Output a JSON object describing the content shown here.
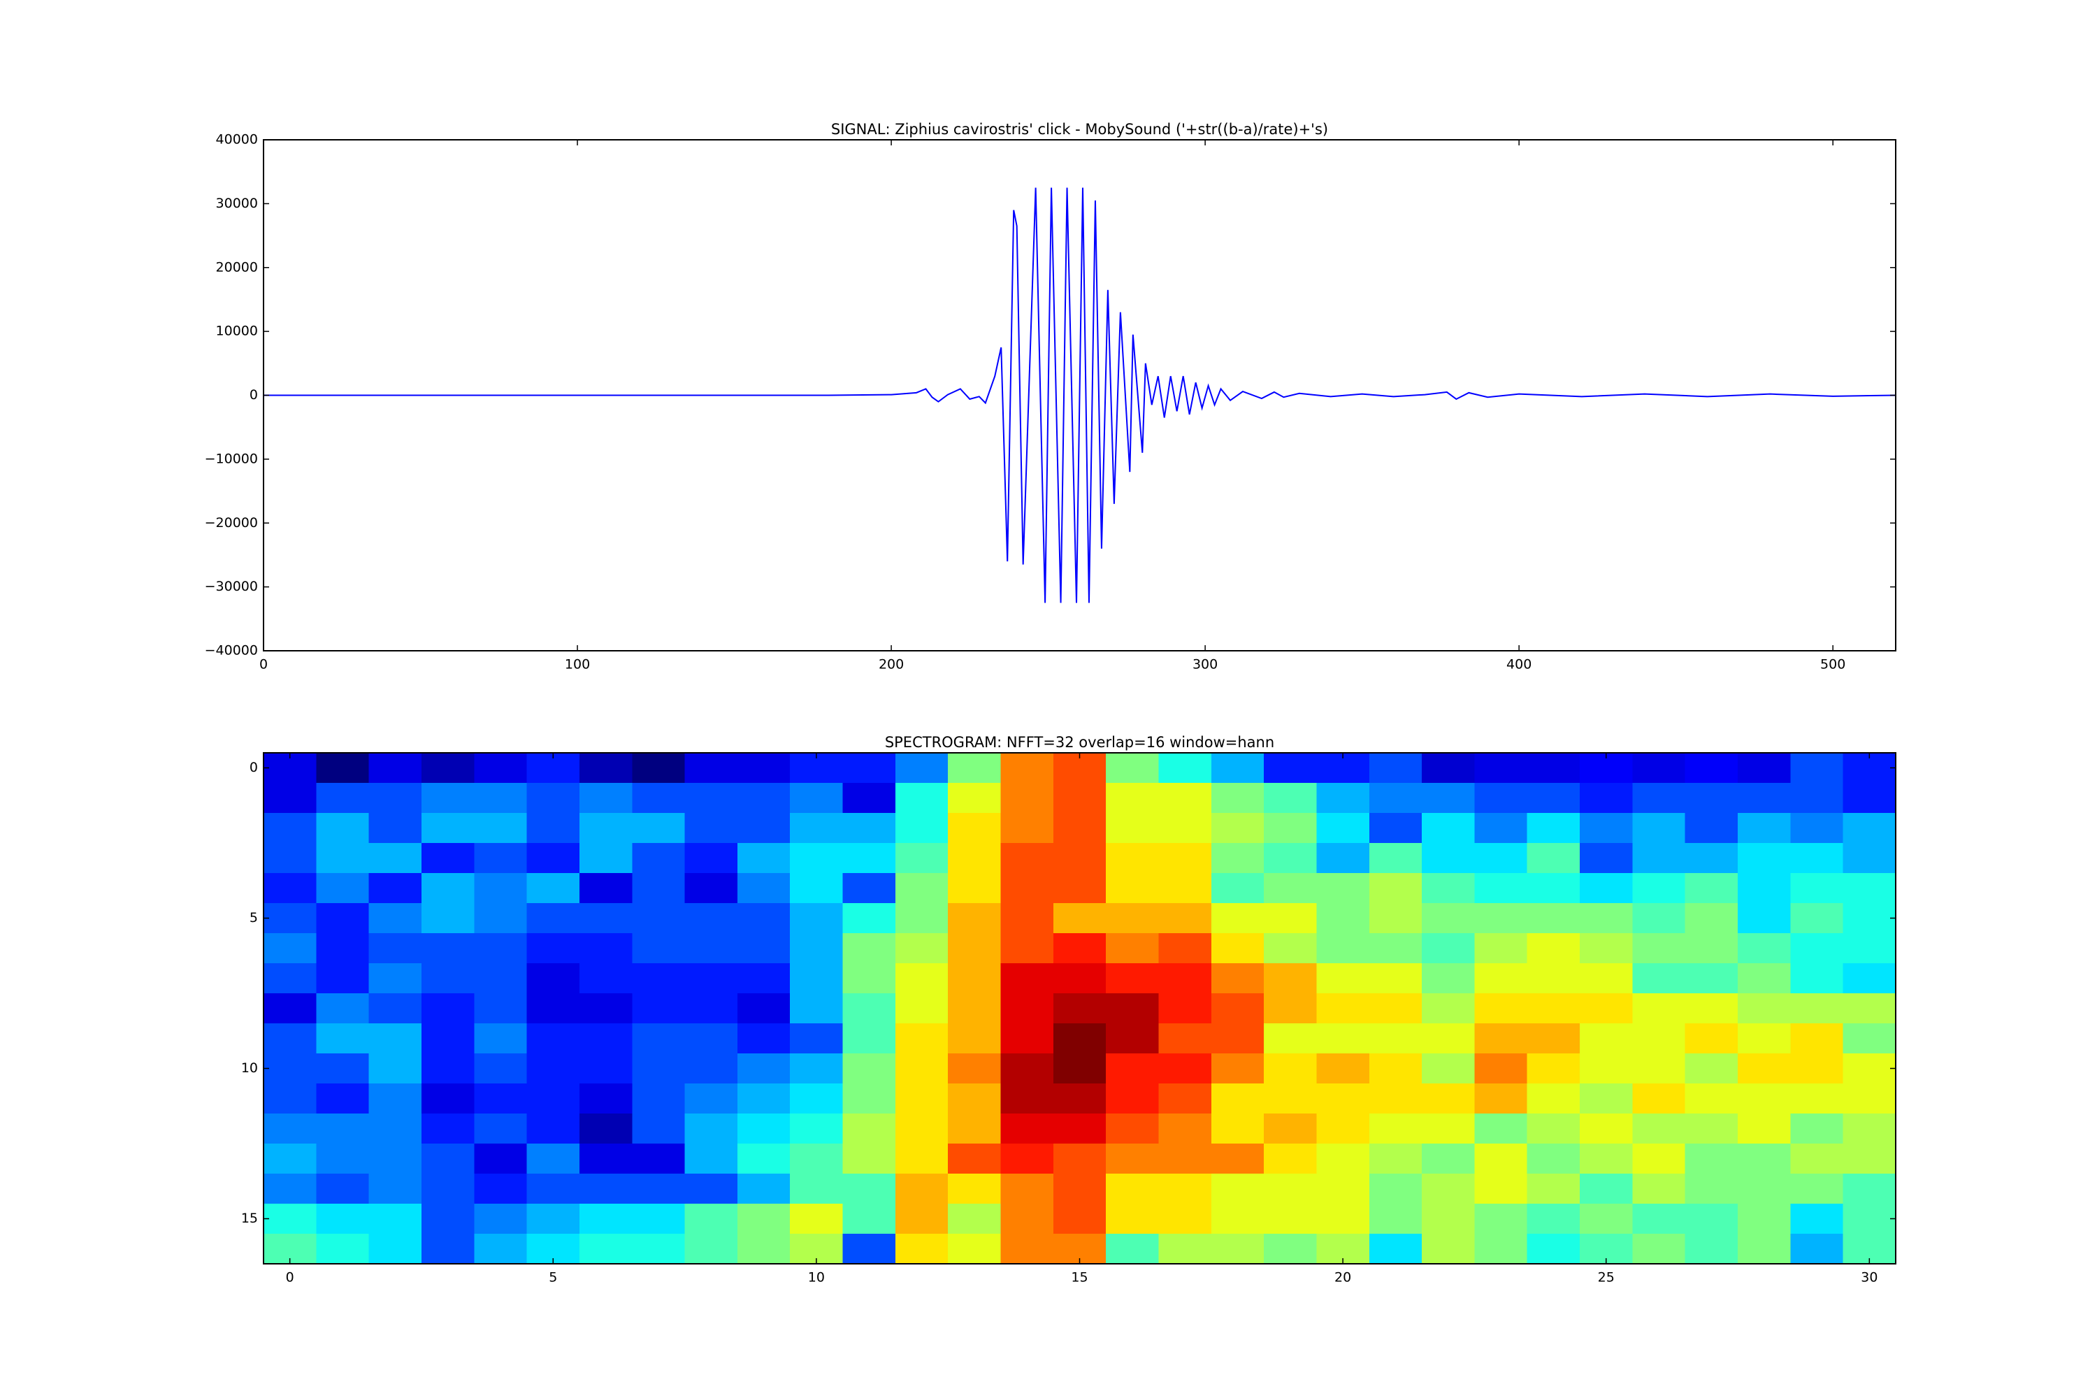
{
  "chart_data": [
    {
      "type": "line",
      "title": "SIGNAL: Ziphius cavirostris' click - MobySound ('+str((b-a)/rate)+'s)",
      "color": "#0000ff",
      "xlim": [
        0,
        520
      ],
      "xticks": [
        0,
        100,
        200,
        300,
        400,
        500
      ],
      "ylim": [
        -40000,
        40000
      ],
      "yticks": [
        {
          "value": -40000,
          "label": "−40000"
        },
        {
          "value": -30000,
          "label": "−30000"
        },
        {
          "value": -20000,
          "label": "−20000"
        },
        {
          "value": -10000,
          "label": "−10000"
        },
        0,
        10000,
        20000,
        30000,
        40000
      ],
      "x": [
        0,
        180,
        200,
        208,
        211,
        213,
        215,
        218,
        222,
        225,
        228,
        230,
        233,
        235,
        237,
        239,
        240,
        242,
        246,
        249,
        251,
        254,
        256,
        259,
        261,
        263,
        265,
        267,
        269,
        271,
        273,
        276,
        277,
        280,
        281,
        283,
        285,
        287,
        289,
        291,
        293,
        295,
        297,
        299,
        301,
        303,
        305,
        308,
        312,
        318,
        322,
        325,
        330,
        340,
        350,
        360,
        370,
        377,
        380,
        384,
        390,
        400,
        420,
        440,
        460,
        480,
        500,
        520
      ],
      "values": [
        0,
        0,
        100,
        400,
        1000,
        -300,
        -1000,
        100,
        1000,
        -600,
        -200,
        -1200,
        3000,
        7500,
        -26000,
        29000,
        26500,
        -26500,
        32500,
        -32500,
        32500,
        -32500,
        32500,
        -32500,
        32500,
        -32500,
        30500,
        -24000,
        16500,
        -17000,
        13000,
        -12000,
        9500,
        -9000,
        5000,
        -1500,
        3000,
        -3500,
        3000,
        -2500,
        3000,
        -3000,
        2000,
        -2000,
        1500,
        -1500,
        1000,
        -800,
        600,
        -500,
        500,
        -300,
        300,
        -200,
        200,
        -200,
        100,
        500,
        -600,
        400,
        -300,
        200,
        -200,
        200,
        -200,
        200,
        -150,
        0
      ]
    },
    {
      "type": "heatmap",
      "title": "SPECTROGRAM: NFFT=32 overlap=16 window=hann",
      "colormap": "jet",
      "clim": [
        0,
        10
      ],
      "xlim": [
        -0.5,
        30.5
      ],
      "xticks": [
        0,
        5,
        10,
        15,
        20,
        25,
        30
      ],
      "ylim": [
        16.5,
        -0.5
      ],
      "yticks": [
        0,
        5,
        10,
        15
      ],
      "values": [
        [
          1,
          0,
          1,
          0.5,
          1,
          1.5,
          0.5,
          0,
          1,
          1,
          1.5,
          1.5,
          2.5,
          5,
          7.5,
          8,
          5,
          4,
          3,
          1.5,
          1.5,
          2,
          0.8,
          1,
          1,
          1.2,
          1,
          1.2,
          1,
          2,
          1.5
        ],
        [
          1,
          2,
          2,
          2.5,
          2.5,
          2,
          2.5,
          2,
          2,
          2,
          2.5,
          1,
          4,
          6,
          7.5,
          8,
          6,
          6,
          5,
          4.5,
          3,
          2.5,
          2.5,
          2,
          2,
          1.5,
          2,
          2,
          2,
          2,
          1.5
        ],
        [
          2,
          3,
          2,
          3,
          3,
          2,
          3,
          3,
          2,
          2,
          3,
          3,
          4,
          6.5,
          7.5,
          8,
          6,
          6,
          5.5,
          5,
          3.5,
          2,
          3.5,
          2.5,
          3.5,
          2.5,
          3,
          2,
          3,
          2.5,
          3
        ],
        [
          2,
          3,
          3,
          1.5,
          2,
          1.5,
          3,
          2,
          1.5,
          3,
          3.5,
          3.5,
          4.5,
          6.5,
          8,
          8,
          6.5,
          6.5,
          5,
          4.5,
          3,
          4.5,
          3.5,
          3.5,
          4.5,
          2,
          3,
          3,
          3.5,
          3.5,
          3
        ],
        [
          1.5,
          2.5,
          1.5,
          3,
          2.5,
          3,
          1,
          2,
          1,
          2.5,
          3.5,
          2,
          5,
          6.5,
          8,
          8,
          6.5,
          6.5,
          4.5,
          5,
          5,
          5.5,
          4.5,
          4,
          4,
          3.5,
          4,
          4.5,
          3.5,
          4,
          4
        ],
        [
          2,
          1.5,
          2.5,
          3,
          2.5,
          2,
          2,
          2,
          2,
          2,
          3,
          4,
          5,
          7,
          8,
          7,
          7,
          7,
          6,
          6,
          5,
          5.5,
          5,
          5,
          5,
          5,
          4.5,
          5,
          3.5,
          4.5,
          4
        ],
        [
          2.5,
          1.5,
          2,
          2,
          2,
          1.5,
          1.5,
          2,
          2,
          2,
          3,
          5,
          5.5,
          7,
          8,
          8.5,
          7.5,
          8,
          6.5,
          5.5,
          5,
          5,
          4.5,
          5.5,
          6,
          5.5,
          5,
          5,
          4.5,
          4,
          4
        ],
        [
          2,
          1.5,
          2.5,
          2,
          2,
          1,
          1.5,
          1.5,
          1.5,
          1.5,
          3,
          5,
          6,
          7,
          9,
          9,
          8.5,
          8.5,
          7.5,
          7,
          6,
          6,
          5,
          6,
          6,
          6,
          4.5,
          4.5,
          5,
          4,
          3.5
        ],
        [
          1,
          2.5,
          2,
          1.5,
          2,
          1,
          1,
          1.5,
          1.5,
          1,
          3,
          4.5,
          6,
          7,
          9,
          9.5,
          9.5,
          8.5,
          8,
          7,
          6.5,
          6.5,
          5.5,
          6.5,
          6.5,
          6.5,
          6,
          6,
          5.5,
          5.5,
          5.5
        ],
        [
          2,
          3,
          3,
          1.5,
          2.5,
          1.5,
          1.5,
          2,
          2,
          1.5,
          2,
          4.5,
          6.5,
          7,
          9,
          10,
          9.5,
          8,
          8,
          6,
          6,
          6,
          6,
          7,
          7,
          6,
          6,
          6.5,
          6,
          6.5,
          5
        ],
        [
          2,
          2,
          3,
          1.5,
          2,
          1.5,
          1.5,
          2,
          2,
          2.5,
          3,
          5,
          6.5,
          7.5,
          9.5,
          10,
          8.5,
          8.5,
          7.5,
          6.5,
          7,
          6.5,
          5.5,
          7.5,
          6.5,
          6,
          6,
          5.5,
          6.5,
          6.5,
          6
        ],
        [
          2,
          1.5,
          2.5,
          1,
          1.5,
          1.5,
          1,
          2,
          2.5,
          3,
          3.5,
          5,
          6.5,
          7,
          9.5,
          9.5,
          8.5,
          8,
          6.5,
          6.5,
          6.5,
          6.5,
          6.5,
          7,
          6,
          5.5,
          6.5,
          6,
          6,
          6,
          6
        ],
        [
          2.5,
          2.5,
          2.5,
          1.5,
          2,
          1.5,
          0.5,
          2,
          3,
          3.5,
          4,
          5.5,
          6.5,
          7,
          9,
          9,
          8,
          7.5,
          6.5,
          7,
          6.5,
          6,
          6,
          5,
          5.5,
          6,
          5.5,
          5.5,
          6,
          5,
          5.5
        ],
        [
          3,
          2.5,
          2.5,
          2,
          1,
          2.5,
          1,
          1,
          3,
          4,
          4.5,
          5.5,
          6.5,
          8,
          8.5,
          8,
          7.5,
          7.5,
          7.5,
          6.5,
          6,
          5.5,
          5,
          6,
          5,
          5.5,
          6,
          5,
          5,
          5.5,
          5.5
        ],
        [
          2.5,
          2,
          2.5,
          2,
          1.5,
          2,
          2,
          2,
          2,
          3,
          4.5,
          4.5,
          7,
          6.5,
          7.5,
          8,
          6.5,
          6.5,
          6,
          6,
          6,
          5,
          5.5,
          6,
          5.5,
          4.5,
          5.5,
          5,
          5,
          5,
          4.5
        ],
        [
          4,
          3.5,
          3.5,
          2,
          2.5,
          3,
          3.5,
          3.5,
          4.5,
          5,
          6,
          4.5,
          7,
          5.5,
          7.5,
          8,
          6.5,
          6.5,
          6,
          6,
          6,
          5,
          5.5,
          5,
          4.5,
          5,
          4.5,
          4.5,
          5,
          3.5,
          4.5
        ],
        [
          4.5,
          4,
          3.5,
          2,
          3,
          3.5,
          4,
          4,
          4.5,
          5,
          5.5,
          2,
          6.5,
          6,
          7.5,
          7.5,
          4.5,
          5.5,
          5.5,
          5,
          5.5,
          3.5,
          5.5,
          5,
          4,
          4.5,
          5,
          4.5,
          5,
          3,
          4.5
        ]
      ]
    }
  ]
}
